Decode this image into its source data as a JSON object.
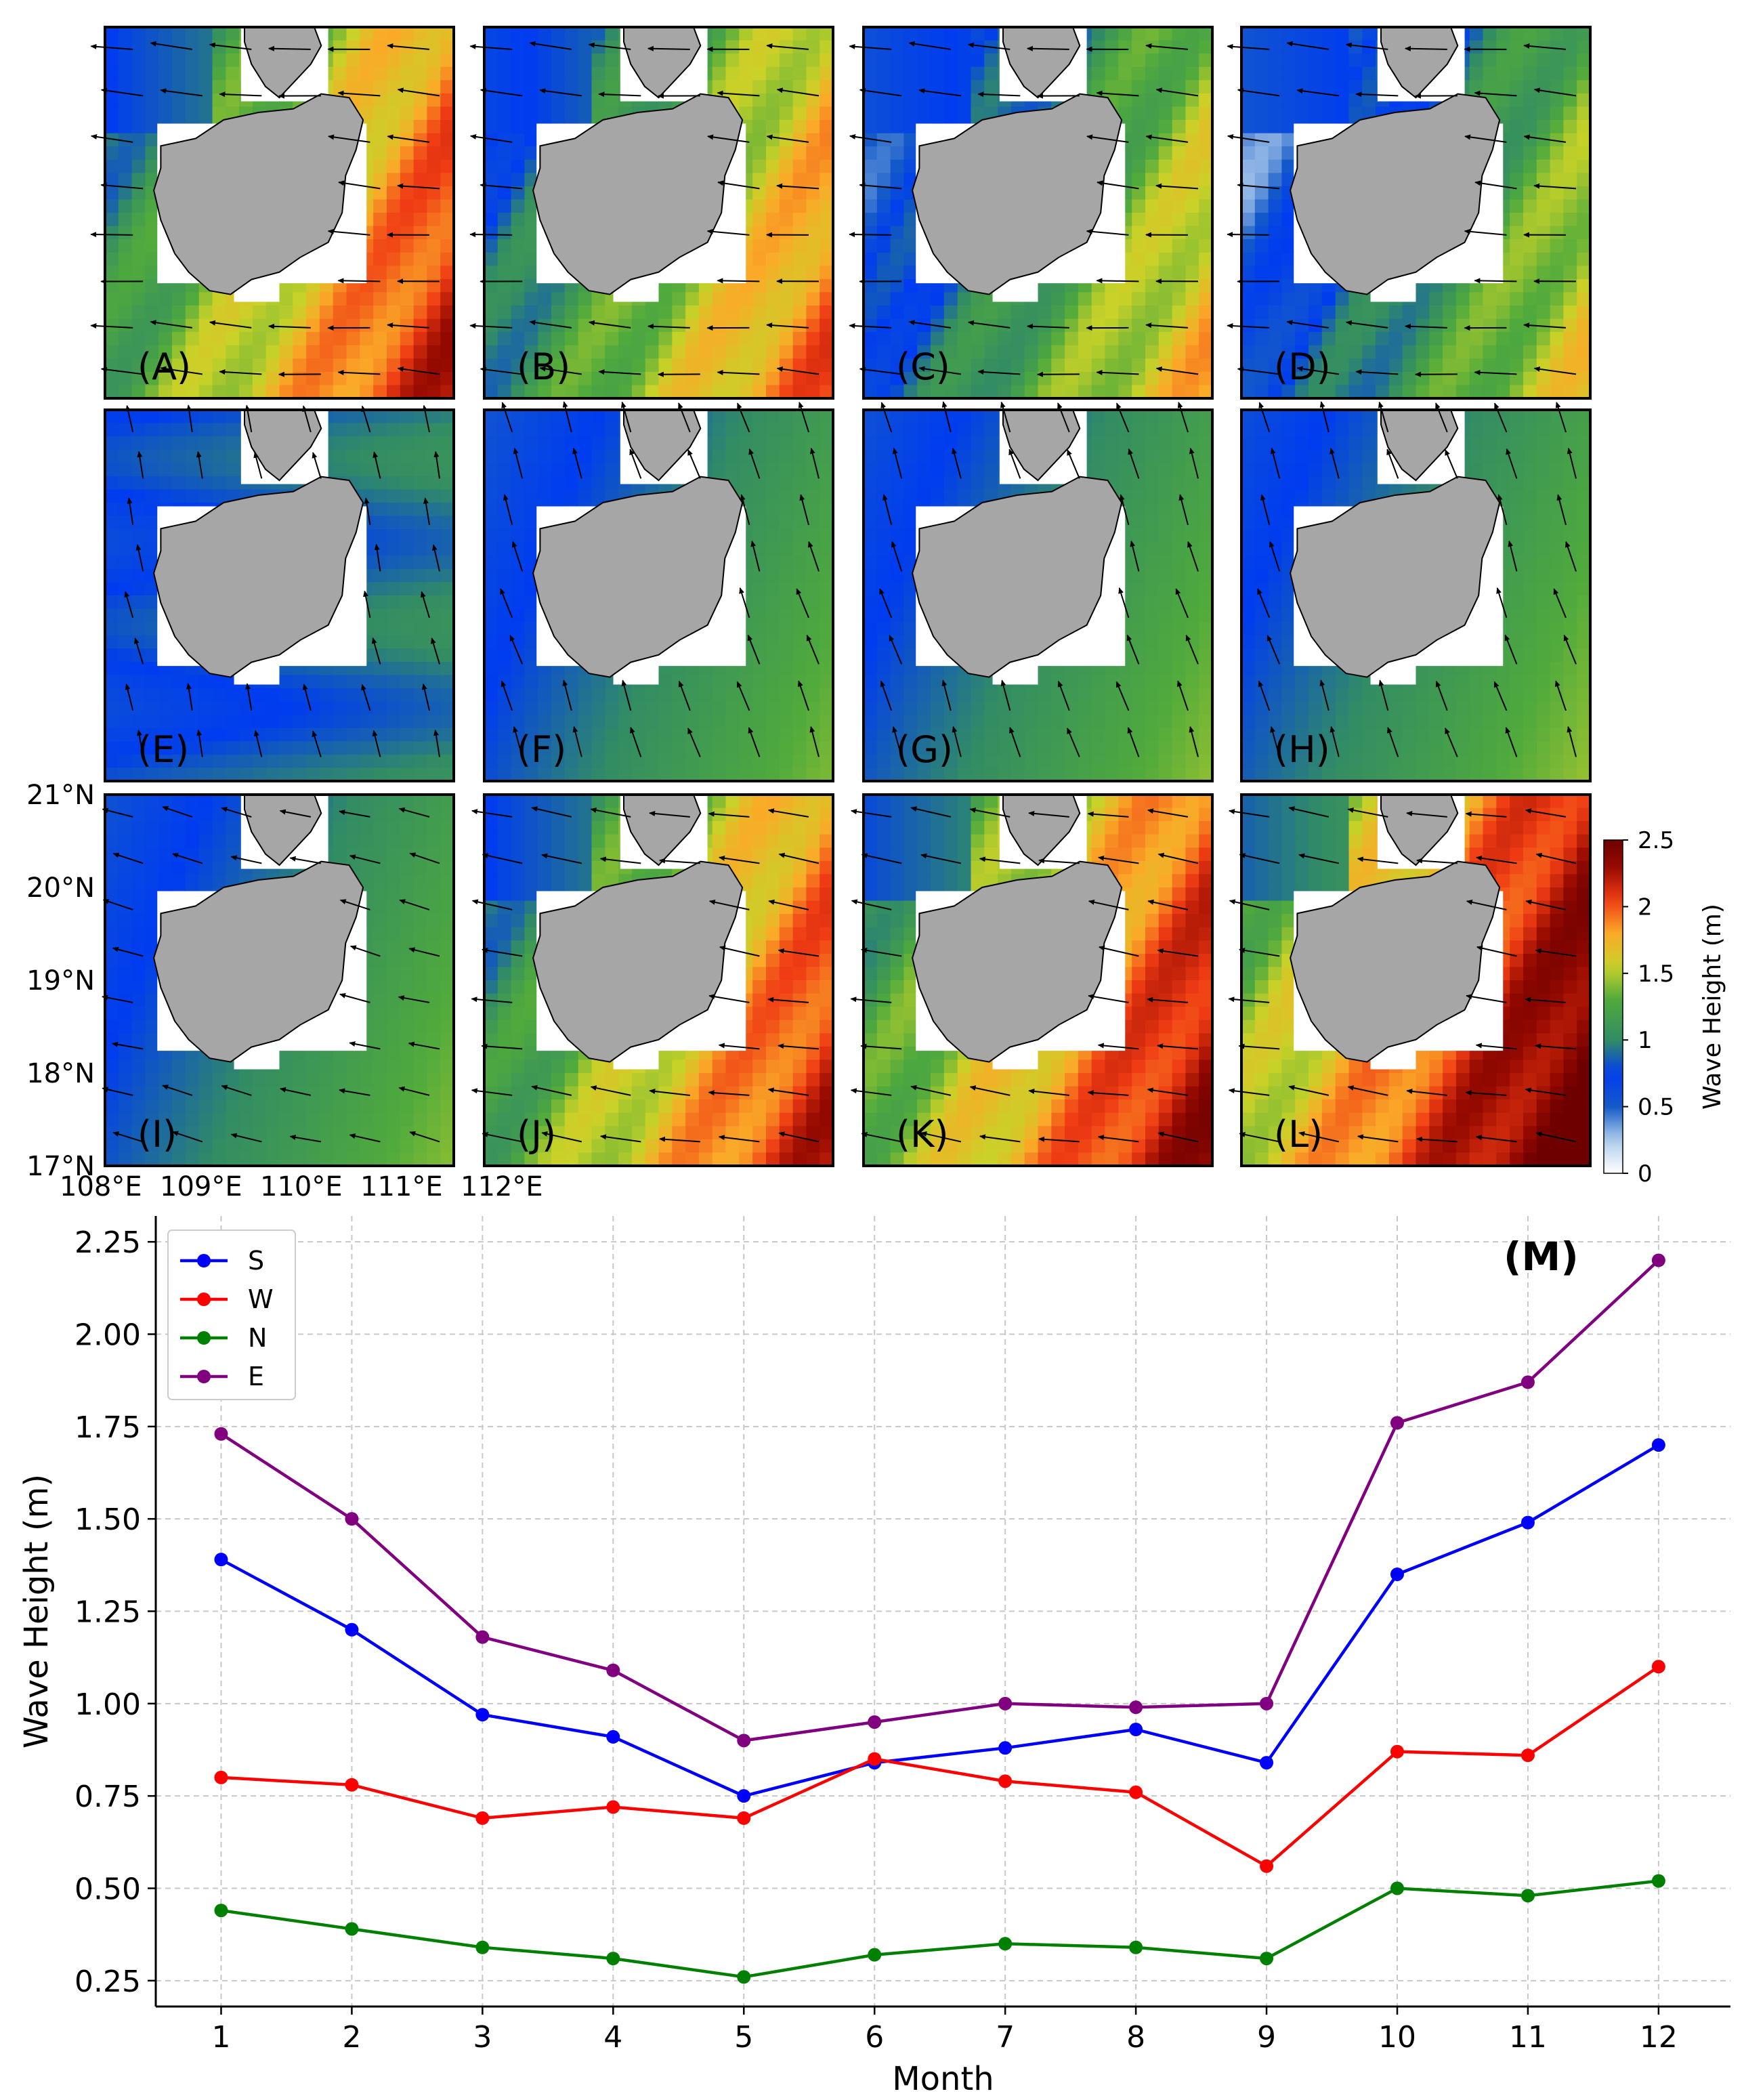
{
  "maps": {
    "panels": [
      {
        "label": "(A)",
        "level": 1.55
      },
      {
        "label": "(B)",
        "level": 1.35
      },
      {
        "label": "(C)",
        "level": 1.12
      },
      {
        "label": "(D)",
        "level": 1.0
      },
      {
        "label": "(E)",
        "level": 0.78
      },
      {
        "label": "(F)",
        "level": 0.9
      },
      {
        "label": "(G)",
        "level": 0.93
      },
      {
        "label": "(H)",
        "level": 0.95
      },
      {
        "label": "(I)",
        "level": 0.92
      },
      {
        "label": "(J)",
        "level": 1.55
      },
      {
        "label": "(K)",
        "level": 1.68
      },
      {
        "label": "(L)",
        "level": 1.9
      }
    ],
    "lat_labels": [
      "21°N",
      "20°N",
      "19°N",
      "18°N",
      "17°N"
    ],
    "lon_labels": [
      "108°E",
      "109°E",
      "110°E",
      "111°E",
      "112°E"
    ],
    "colorbar": {
      "label": "Wave Height (m)",
      "ticks": [
        "0",
        "0.5",
        "1",
        "1.5",
        "2",
        "2.5"
      ],
      "range": [
        0,
        2.5
      ]
    }
  },
  "chart_data": {
    "type": "line",
    "panel_label": "(M)",
    "xlabel": "Month",
    "ylabel": "Wave Height (m)",
    "categories": [
      1,
      2,
      3,
      4,
      5,
      6,
      7,
      8,
      9,
      10,
      11,
      12
    ],
    "x_tick_labels": [
      "1",
      "2",
      "3",
      "4",
      "5",
      "6",
      "7",
      "8",
      "9",
      "10",
      "11",
      "12"
    ],
    "y_ticks": [
      0.25,
      0.5,
      0.75,
      1.0,
      1.25,
      1.5,
      1.75,
      2.0,
      2.25
    ],
    "y_tick_labels": [
      "0.25",
      "0.50",
      "0.75",
      "1.00",
      "1.25",
      "1.50",
      "1.75",
      "2.00",
      "2.25"
    ],
    "ylim": [
      0.18,
      2.32
    ],
    "xlim": [
      0.5,
      12.55
    ],
    "grid": true,
    "legend": "top-left",
    "series": [
      {
        "name": "S",
        "color": "#0000ff",
        "values": [
          1.39,
          1.2,
          0.97,
          0.91,
          0.75,
          0.84,
          0.88,
          0.93,
          0.84,
          1.35,
          1.49,
          1.7
        ]
      },
      {
        "name": "W",
        "color": "#ff0000",
        "values": [
          0.8,
          0.78,
          0.69,
          0.72,
          0.69,
          0.85,
          0.79,
          0.76,
          0.56,
          0.87,
          0.86,
          1.1
        ]
      },
      {
        "name": "N",
        "color": "#008000",
        "values": [
          0.44,
          0.39,
          0.34,
          0.31,
          0.26,
          0.32,
          0.35,
          0.34,
          0.31,
          0.5,
          0.48,
          0.52
        ]
      },
      {
        "name": "E",
        "color": "#800080",
        "values": [
          1.73,
          1.5,
          1.18,
          1.09,
          0.9,
          0.95,
          1.0,
          0.99,
          1.0,
          1.76,
          1.87,
          2.2
        ]
      }
    ]
  }
}
